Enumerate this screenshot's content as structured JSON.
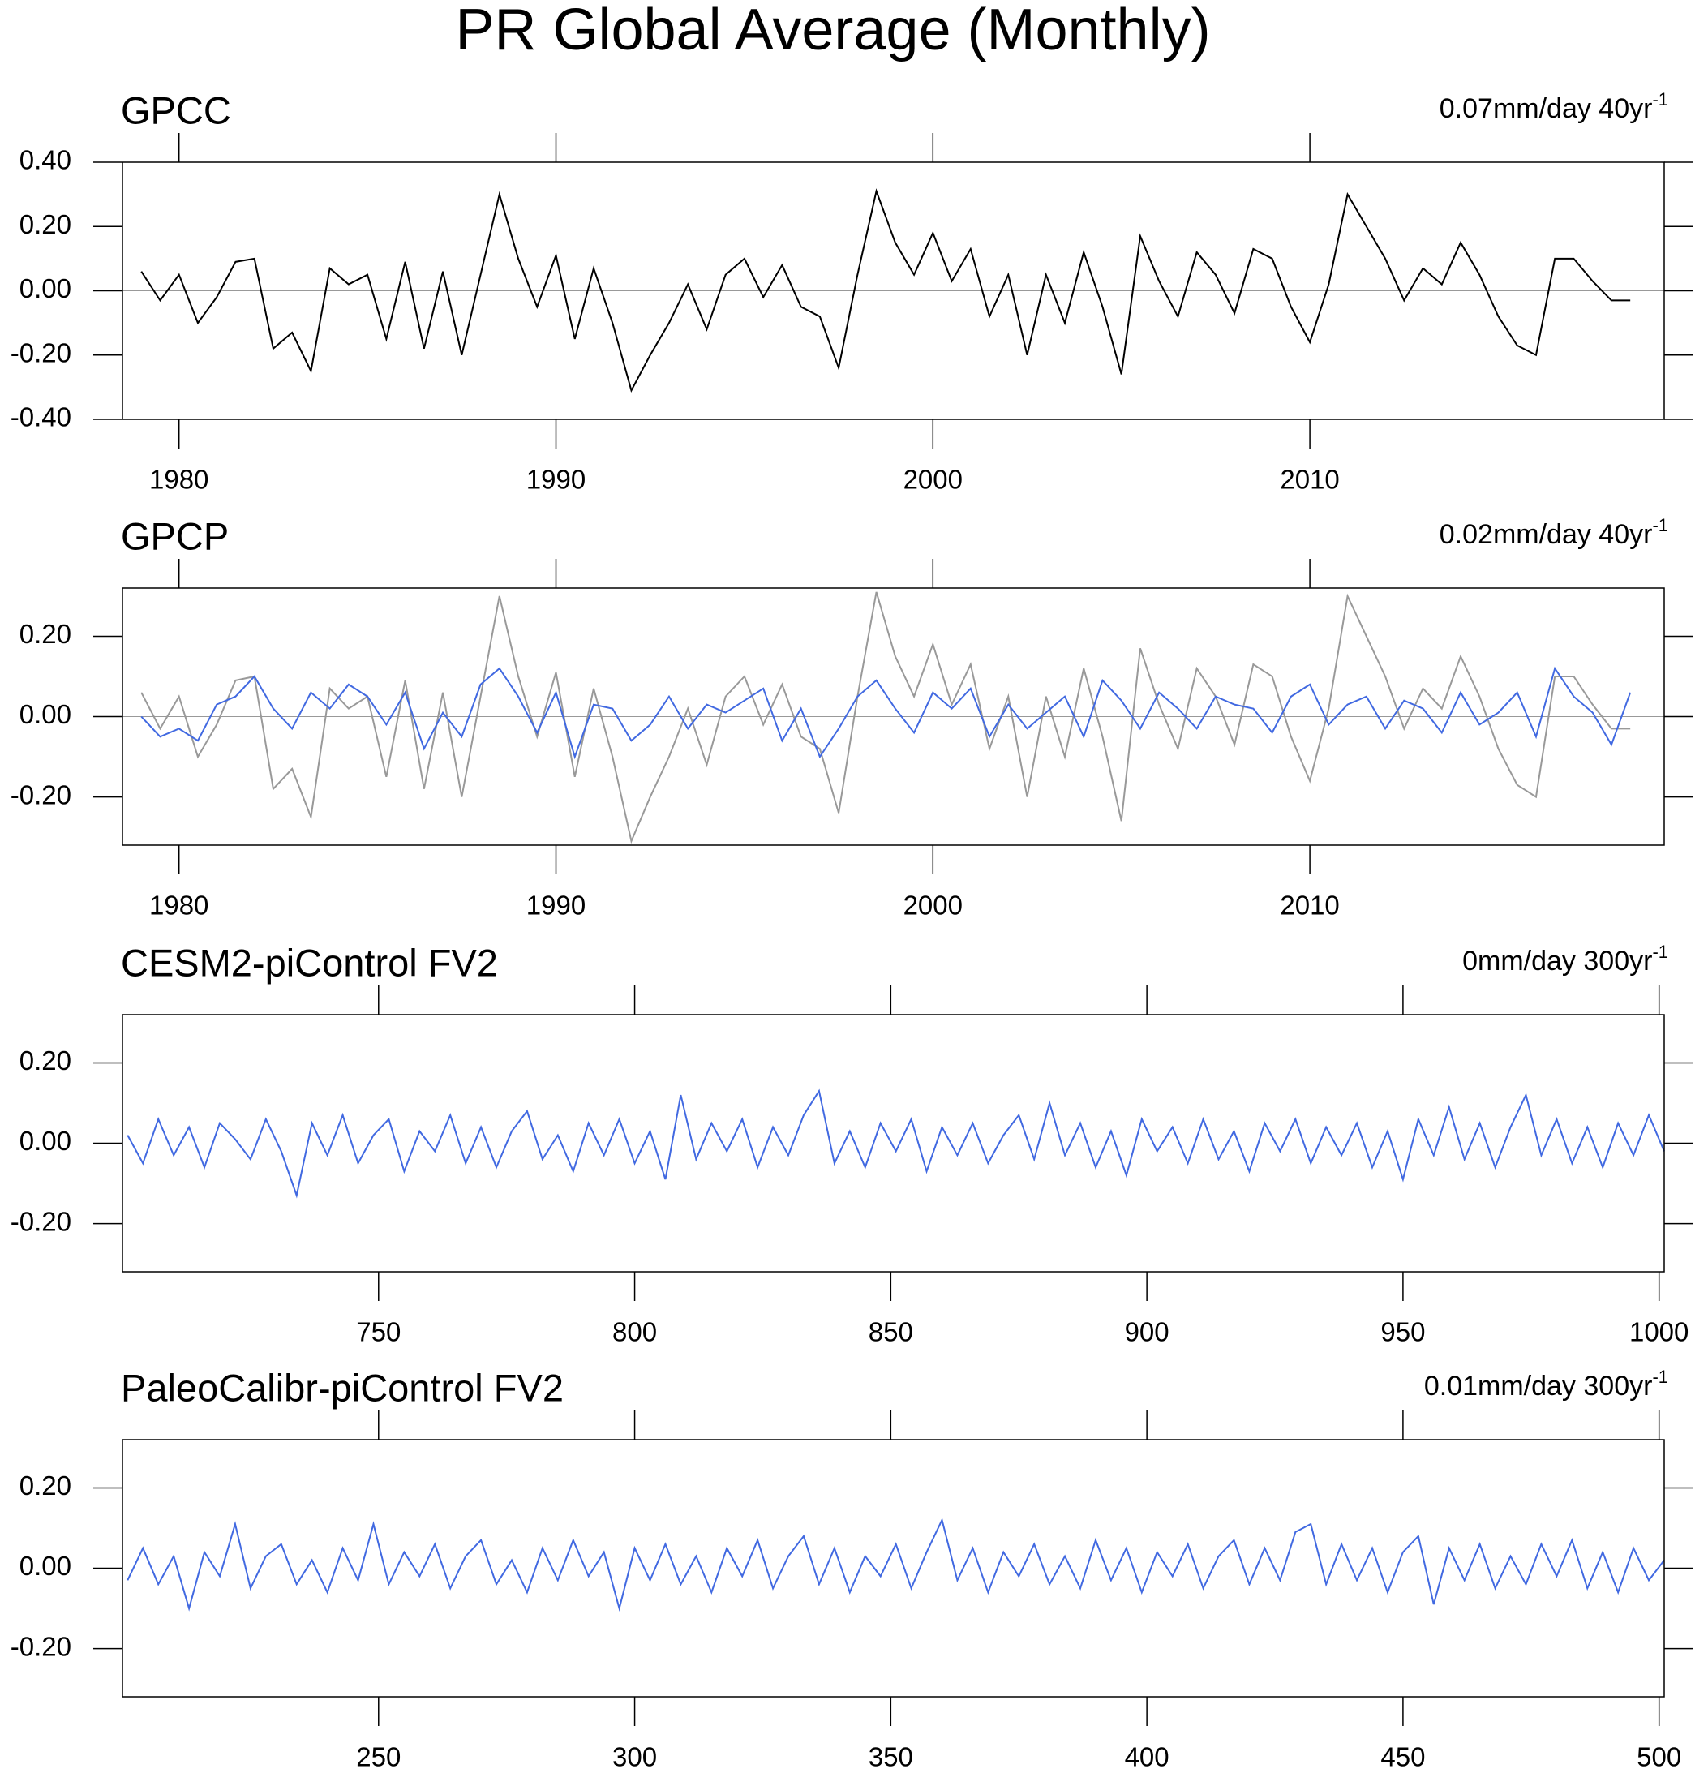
{
  "title": "PR Global Average (Monthly)",
  "chart_data": [
    {
      "type": "line",
      "title": "GPCC",
      "trend_label": "0.07mm/day 40yr",
      "trend_exponent": "-1",
      "zero_line": true,
      "xlim": [
        1978.5,
        2019.4
      ],
      "xticks": [
        1980,
        1990,
        2000,
        2010
      ],
      "ylim": [
        -0.4,
        0.4
      ],
      "yticks": [
        {
          "value": -0.4,
          "label": "-0.40"
        },
        {
          "value": -0.2,
          "label": "-0.20"
        },
        {
          "value": 0,
          "label": "0.00"
        },
        {
          "value": 0.2,
          "label": "0.20"
        },
        {
          "value": 0.4,
          "label": "0.40"
        }
      ],
      "x": [
        1979.0,
        1979.5,
        1980.0,
        1980.5,
        1981.0,
        1981.5,
        1982.0,
        1982.5,
        1983.0,
        1983.5,
        1984.0,
        1984.5,
        1985.0,
        1985.5,
        1986.0,
        1986.5,
        1987.0,
        1987.5,
        1988.0,
        1988.5,
        1989.0,
        1989.5,
        1990.0,
        1990.5,
        1991.0,
        1991.5,
        1992.0,
        1992.5,
        1993.0,
        1993.5,
        1994.0,
        1994.5,
        1995.0,
        1995.5,
        1996.0,
        1996.5,
        1997.0,
        1997.5,
        1998.0,
        1998.5,
        1999.0,
        1999.5,
        2000.0,
        2000.5,
        2001.0,
        2001.5,
        2002.0,
        2002.5,
        2003.0,
        2003.5,
        2004.0,
        2004.5,
        2005.0,
        2005.5,
        2006.0,
        2006.5,
        2007.0,
        2007.5,
        2008.0,
        2008.5,
        2009.0,
        2009.5,
        2010.0,
        2010.5,
        2011.0,
        2011.5,
        2012.0,
        2012.5,
        2013.0,
        2013.5,
        2014.0,
        2014.5,
        2015.0,
        2015.5,
        2016.0,
        2016.5,
        2017.0,
        2017.5,
        2018.0,
        2018.5
      ],
      "series": [
        {
          "color": "#000000",
          "values": [
            0.06,
            -0.03,
            0.05,
            -0.1,
            -0.02,
            0.09,
            0.1,
            -0.18,
            -0.13,
            -0.25,
            0.07,
            0.02,
            0.05,
            -0.15,
            0.09,
            -0.18,
            0.06,
            -0.2,
            0.05,
            0.3,
            0.1,
            -0.05,
            0.11,
            -0.15,
            0.07,
            -0.1,
            -0.31,
            -0.2,
            -0.1,
            0.02,
            -0.12,
            0.05,
            0.1,
            -0.02,
            0.08,
            -0.05,
            -0.08,
            -0.24,
            0.05,
            0.31,
            0.15,
            0.05,
            0.18,
            0.03,
            0.13,
            -0.08,
            0.05,
            -0.2,
            0.05,
            -0.1,
            0.12,
            -0.05,
            -0.26,
            0.17,
            0.03,
            -0.08,
            0.12,
            0.05,
            -0.07,
            0.13,
            0.1,
            -0.05,
            -0.16,
            0.02,
            0.3,
            0.2,
            0.1,
            -0.03,
            0.07,
            0.02,
            0.15,
            0.05,
            -0.08,
            -0.17,
            -0.2,
            0.1,
            0.1,
            0.03,
            -0.03,
            -0.03
          ]
        }
      ]
    },
    {
      "type": "line",
      "title": "GPCP",
      "trend_label": "0.02mm/day 40yr",
      "trend_exponent": "-1",
      "zero_line": true,
      "xlim": [
        1978.5,
        2019.4
      ],
      "xticks": [
        1980,
        1990,
        2000,
        2010
      ],
      "ylim": [
        -0.32,
        0.32
      ],
      "yticks": [
        {
          "value": -0.2,
          "label": "-0.20"
        },
        {
          "value": 0,
          "label": "0.00"
        },
        {
          "value": 0.2,
          "label": "0.20"
        }
      ],
      "x": [
        1979.0,
        1979.5,
        1980.0,
        1980.5,
        1981.0,
        1981.5,
        1982.0,
        1982.5,
        1983.0,
        1983.5,
        1984.0,
        1984.5,
        1985.0,
        1985.5,
        1986.0,
        1986.5,
        1987.0,
        1987.5,
        1988.0,
        1988.5,
        1989.0,
        1989.5,
        1990.0,
        1990.5,
        1991.0,
        1991.5,
        1992.0,
        1992.5,
        1993.0,
        1993.5,
        1994.0,
        1994.5,
        1995.0,
        1995.5,
        1996.0,
        1996.5,
        1997.0,
        1997.5,
        1998.0,
        1998.5,
        1999.0,
        1999.5,
        2000.0,
        2000.5,
        2001.0,
        2001.5,
        2002.0,
        2002.5,
        2003.0,
        2003.5,
        2004.0,
        2004.5,
        2005.0,
        2005.5,
        2006.0,
        2006.5,
        2007.0,
        2007.5,
        2008.0,
        2008.5,
        2009.0,
        2009.5,
        2010.0,
        2010.5,
        2011.0,
        2011.5,
        2012.0,
        2012.5,
        2013.0,
        2013.5,
        2014.0,
        2014.5,
        2015.0,
        2015.5,
        2016.0,
        2016.5,
        2017.0,
        2017.5,
        2018.0,
        2018.5
      ],
      "series": [
        {
          "color": "#999999",
          "values": [
            0.06,
            -0.03,
            0.05,
            -0.1,
            -0.02,
            0.09,
            0.1,
            -0.18,
            -0.13,
            -0.25,
            0.07,
            0.02,
            0.05,
            -0.15,
            0.09,
            -0.18,
            0.06,
            -0.2,
            0.05,
            0.3,
            0.1,
            -0.05,
            0.11,
            -0.15,
            0.07,
            -0.1,
            -0.31,
            -0.2,
            -0.1,
            0.02,
            -0.12,
            0.05,
            0.1,
            -0.02,
            0.08,
            -0.05,
            -0.08,
            -0.24,
            0.05,
            0.31,
            0.15,
            0.05,
            0.18,
            0.03,
            0.13,
            -0.08,
            0.05,
            -0.2,
            0.05,
            -0.1,
            0.12,
            -0.05,
            -0.26,
            0.17,
            0.03,
            -0.08,
            0.12,
            0.05,
            -0.07,
            0.13,
            0.1,
            -0.05,
            -0.16,
            0.02,
            0.3,
            0.2,
            0.1,
            -0.03,
            0.07,
            0.02,
            0.15,
            0.05,
            -0.08,
            -0.17,
            -0.2,
            0.1,
            0.1,
            0.03,
            -0.03,
            -0.03
          ]
        },
        {
          "color": "#4169e1",
          "values": [
            0.0,
            -0.05,
            -0.03,
            -0.06,
            0.03,
            0.05,
            0.1,
            0.02,
            -0.03,
            0.06,
            0.02,
            0.08,
            0.05,
            -0.02,
            0.06,
            -0.08,
            0.01,
            -0.05,
            0.08,
            0.12,
            0.05,
            -0.04,
            0.06,
            -0.1,
            0.03,
            0.02,
            -0.06,
            -0.02,
            0.05,
            -0.03,
            0.03,
            0.01,
            0.04,
            0.07,
            -0.06,
            0.02,
            -0.1,
            -0.03,
            0.05,
            0.09,
            0.02,
            -0.04,
            0.06,
            0.02,
            0.07,
            -0.05,
            0.03,
            -0.03,
            0.01,
            0.05,
            -0.05,
            0.09,
            0.04,
            -0.03,
            0.06,
            0.02,
            -0.03,
            0.05,
            0.03,
            0.02,
            -0.04,
            0.05,
            0.08,
            -0.02,
            0.03,
            0.05,
            -0.03,
            0.04,
            0.02,
            -0.04,
            0.06,
            -0.02,
            0.01,
            0.06,
            -0.05,
            0.12,
            0.05,
            0.01,
            -0.07,
            0.06
          ]
        }
      ]
    },
    {
      "type": "line",
      "title": "CESM2-piControl FV2",
      "trend_label": "0mm/day 300yr",
      "trend_exponent": "-1",
      "zero_line": false,
      "xlim": [
        700,
        1001
      ],
      "xticks": [
        750,
        800,
        850,
        900,
        950,
        1000
      ],
      "ylim": [
        -0.32,
        0.32
      ],
      "yticks": [
        {
          "value": -0.2,
          "label": "-0.20"
        },
        {
          "value": 0,
          "label": "0.00"
        },
        {
          "value": 0.2,
          "label": "0.20"
        }
      ],
      "x": [
        701,
        704,
        707,
        710,
        713,
        716,
        719,
        722,
        725,
        728,
        731,
        734,
        737,
        740,
        743,
        746,
        749,
        752,
        755,
        758,
        761,
        764,
        767,
        770,
        773,
        776,
        779,
        782,
        785,
        788,
        791,
        794,
        797,
        800,
        803,
        806,
        809,
        812,
        815,
        818,
        821,
        824,
        827,
        830,
        833,
        836,
        839,
        842,
        845,
        848,
        851,
        854,
        857,
        860,
        863,
        866,
        869,
        872,
        875,
        878,
        881,
        884,
        887,
        890,
        893,
        896,
        899,
        902,
        905,
        908,
        911,
        914,
        917,
        920,
        923,
        926,
        929,
        932,
        935,
        938,
        941,
        944,
        947,
        950,
        953,
        956,
        959,
        962,
        965,
        968,
        971,
        974,
        977,
        980,
        983,
        986,
        989,
        992,
        995,
        998,
        1001
      ],
      "series": [
        {
          "color": "#4169e1",
          "values": [
            0.02,
            -0.05,
            0.06,
            -0.03,
            0.04,
            -0.06,
            0.05,
            0.01,
            -0.04,
            0.06,
            -0.02,
            -0.13,
            0.05,
            -0.03,
            0.07,
            -0.05,
            0.02,
            0.06,
            -0.07,
            0.03,
            -0.02,
            0.07,
            -0.05,
            0.04,
            -0.06,
            0.03,
            0.08,
            -0.04,
            0.02,
            -0.07,
            0.05,
            -0.03,
            0.06,
            -0.05,
            0.03,
            -0.09,
            0.12,
            -0.04,
            0.05,
            -0.02,
            0.06,
            -0.06,
            0.04,
            -0.03,
            0.07,
            0.13,
            -0.05,
            0.03,
            -0.06,
            0.05,
            -0.02,
            0.06,
            -0.07,
            0.04,
            -0.03,
            0.05,
            -0.05,
            0.02,
            0.07,
            -0.04,
            0.1,
            -0.03,
            0.05,
            -0.06,
            0.03,
            -0.08,
            0.06,
            -0.02,
            0.04,
            -0.05,
            0.06,
            -0.04,
            0.03,
            -0.07,
            0.05,
            -0.02,
            0.06,
            -0.05,
            0.04,
            -0.03,
            0.05,
            -0.06,
            0.03,
            -0.09,
            0.06,
            -0.03,
            0.09,
            -0.04,
            0.05,
            -0.06,
            0.04,
            0.12,
            -0.03,
            0.06,
            -0.05,
            0.04,
            -0.06,
            0.05,
            -0.03,
            0.07,
            -0.02
          ]
        }
      ]
    },
    {
      "type": "line",
      "title": "PaleoCalibr-piControl FV2",
      "trend_label": "0.01mm/day 300yr",
      "trend_exponent": "-1",
      "zero_line": false,
      "xlim": [
        200,
        501
      ],
      "xticks": [
        250,
        300,
        350,
        400,
        450,
        500
      ],
      "ylim": [
        -0.32,
        0.32
      ],
      "yticks": [
        {
          "value": -0.2,
          "label": "-0.20"
        },
        {
          "value": 0,
          "label": "0.00"
        },
        {
          "value": 0.2,
          "label": "0.20"
        }
      ],
      "x": [
        201,
        204,
        207,
        210,
        213,
        216,
        219,
        222,
        225,
        228,
        231,
        234,
        237,
        240,
        243,
        246,
        249,
        252,
        255,
        258,
        261,
        264,
        267,
        270,
        273,
        276,
        279,
        282,
        285,
        288,
        291,
        294,
        297,
        300,
        303,
        306,
        309,
        312,
        315,
        318,
        321,
        324,
        327,
        330,
        333,
        336,
        339,
        342,
        345,
        348,
        351,
        354,
        357,
        360,
        363,
        366,
        369,
        372,
        375,
        378,
        381,
        384,
        387,
        390,
        393,
        396,
        399,
        402,
        405,
        408,
        411,
        414,
        417,
        420,
        423,
        426,
        429,
        432,
        435,
        438,
        441,
        444,
        447,
        450,
        453,
        456,
        459,
        462,
        465,
        468,
        471,
        474,
        477,
        480,
        483,
        486,
        489,
        492,
        495,
        498,
        501
      ],
      "series": [
        {
          "color": "#4169e1",
          "values": [
            -0.03,
            0.05,
            -0.04,
            0.03,
            -0.1,
            0.04,
            -0.02,
            0.11,
            -0.05,
            0.03,
            0.06,
            -0.04,
            0.02,
            -0.06,
            0.05,
            -0.03,
            0.11,
            -0.04,
            0.04,
            -0.02,
            0.06,
            -0.05,
            0.03,
            0.07,
            -0.04,
            0.02,
            -0.06,
            0.05,
            -0.03,
            0.07,
            -0.02,
            0.04,
            -0.1,
            0.05,
            -0.03,
            0.06,
            -0.04,
            0.03,
            -0.06,
            0.05,
            -0.02,
            0.07,
            -0.05,
            0.03,
            0.08,
            -0.04,
            0.05,
            -0.06,
            0.03,
            -0.02,
            0.06,
            -0.05,
            0.04,
            0.12,
            -0.03,
            0.05,
            -0.06,
            0.04,
            -0.02,
            0.06,
            -0.04,
            0.03,
            -0.05,
            0.07,
            -0.03,
            0.05,
            -0.06,
            0.04,
            -0.02,
            0.06,
            -0.05,
            0.03,
            0.07,
            -0.04,
            0.05,
            -0.03,
            0.09,
            0.11,
            -0.04,
            0.06,
            -0.03,
            0.05,
            -0.06,
            0.04,
            0.08,
            -0.09,
            0.05,
            -0.03,
            0.06,
            -0.05,
            0.03,
            -0.04,
            0.06,
            -0.02,
            0.07,
            -0.05,
            0.04,
            -0.06,
            0.05,
            -0.03,
            0.02
          ]
        }
      ]
    }
  ]
}
